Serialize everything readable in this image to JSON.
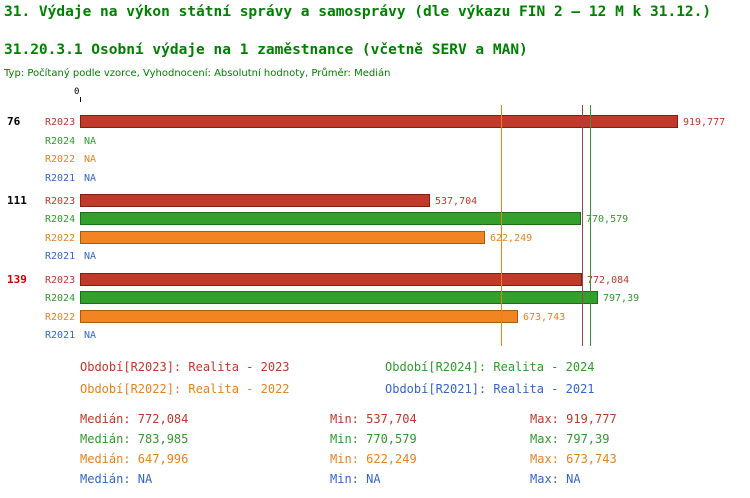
{
  "title": "31. Výdaje na výkon státní správy a samosprávy (dle výkazu FIN 2 – 12 M k 31.12.)",
  "subtitle": "31.20.3.1 Osobní výdaje na 1 zaměstnance (včetně SERV a MAN)",
  "meta": "Typ: Počítaný podle vzorce, Vyhodnocení: Absolutní hodnoty, Průměr: Medián",
  "colors": {
    "title_green": "#008000",
    "flagged_group_red": "#cc0000",
    "group_label_black": "#000000"
  },
  "series_styles": {
    "R2023": {
      "fill": "#c0392b",
      "border": "#801f12",
      "text": "#c0392b"
    },
    "R2024": {
      "fill": "#33a02c",
      "border": "#1e6b1a",
      "text": "#2e9b2c"
    },
    "R2022": {
      "fill": "#f28522",
      "border": "#a85c10",
      "text": "#e8821e"
    },
    "R2021": {
      "fill": "#3366cc",
      "border": "#1f3f80",
      "text": "#3366cc"
    }
  },
  "chart_data": {
    "type": "bar",
    "orientation": "horizontal",
    "x_axis": {
      "zero_label": "0",
      "max_value": 945000
    },
    "groups": [
      {
        "label": "76",
        "label_color": "#000000",
        "rows": [
          {
            "series": "R2023",
            "value": 919777,
            "display": "919,777"
          },
          {
            "series": "R2024",
            "value": null,
            "display": "NA"
          },
          {
            "series": "R2022",
            "value": null,
            "display": "NA"
          },
          {
            "series": "R2021",
            "value": null,
            "display": "NA"
          }
        ]
      },
      {
        "label": "111",
        "label_color": "#000000",
        "rows": [
          {
            "series": "R2023",
            "value": 537704,
            "display": "537,704"
          },
          {
            "series": "R2024",
            "value": 770579,
            "display": "770,579"
          },
          {
            "series": "R2022",
            "value": 622249,
            "display": "622,249"
          },
          {
            "series": "R2021",
            "value": null,
            "display": "NA"
          }
        ]
      },
      {
        "label": "139",
        "label_color": "#cc0000",
        "rows": [
          {
            "series": "R2023",
            "value": 772084,
            "display": "772,084"
          },
          {
            "series": "R2024",
            "value": 797390,
            "display": "797,39"
          },
          {
            "series": "R2022",
            "value": 673743,
            "display": "673,743"
          },
          {
            "series": "R2021",
            "value": null,
            "display": "NA"
          }
        ]
      }
    ],
    "reference_lines": [
      {
        "value": 647996,
        "color": "#e8821e"
      },
      {
        "value": 772084,
        "color": "#a04545"
      },
      {
        "value": 783985,
        "color": "#2e9b2c"
      }
    ]
  },
  "legend": [
    {
      "series": "R2023",
      "text": "Období[R2023]: Realita - 2023"
    },
    {
      "series": "R2024",
      "text": "Období[R2024]: Realita - 2024"
    },
    {
      "series": "R2022",
      "text": "Období[R2022]: Realita - 2022"
    },
    {
      "series": "R2021",
      "text": "Období[R2021]: Realita - 2021"
    }
  ],
  "stats": {
    "labels": {
      "median": "Medián",
      "min": "Min",
      "max": "Max"
    },
    "rows": [
      {
        "series": "R2023",
        "median": "772,084",
        "min": "537,704",
        "max": "919,777"
      },
      {
        "series": "R2024",
        "median": "783,985",
        "min": "770,579",
        "max": "797,39"
      },
      {
        "series": "R2022",
        "median": "647,996",
        "min": "622,249",
        "max": "673,743"
      },
      {
        "series": "R2021",
        "median": "NA",
        "min": "NA",
        "max": "NA"
      }
    ]
  }
}
